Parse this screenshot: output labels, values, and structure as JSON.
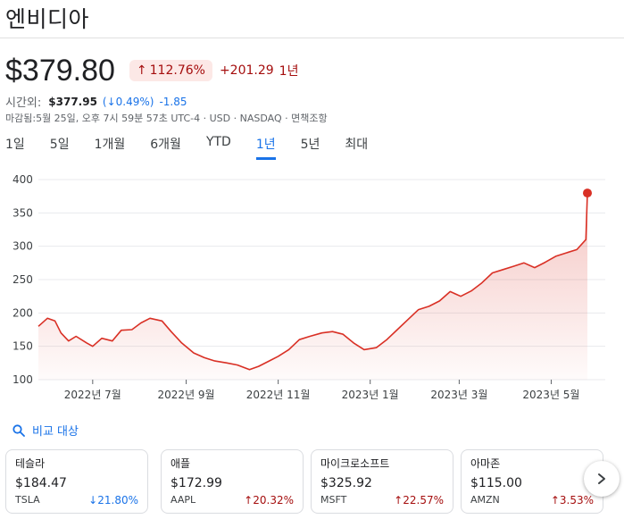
{
  "header": {
    "title": "엔비디아"
  },
  "quote": {
    "price": "$379.80",
    "change_pct": "112.76%",
    "change_abs": "+201.29",
    "period": "1년",
    "after_hours_label": "시간외:",
    "after_hours_price": "$377.95",
    "after_hours_pct": "(↓0.49%)",
    "after_hours_abs": "-1.85",
    "meta": "마감됨:5월 25일, 오후 7시 59분 57초 UTC-4 · USD · NASDAQ · 면책조항"
  },
  "ranges": [
    {
      "label": "1일",
      "active": false
    },
    {
      "label": "5일",
      "active": false
    },
    {
      "label": "1개월",
      "active": false
    },
    {
      "label": "6개월",
      "active": false
    },
    {
      "label": "YTD",
      "active": false
    },
    {
      "label": "1년",
      "active": true
    },
    {
      "label": "5년",
      "active": false
    },
    {
      "label": "최대",
      "active": false
    }
  ],
  "chart_data": {
    "type": "line",
    "y_ticks": [
      400,
      350,
      300,
      250,
      200,
      150,
      100
    ],
    "ylim": [
      100,
      400
    ],
    "x_tick_labels": [
      "2022년 7월",
      "2022년 9월",
      "2022년 11월",
      "2023년 1월",
      "2023년 3월",
      "2023년 5월"
    ],
    "x_tick_dates": [
      "2022-07-01",
      "2022-09-01",
      "2022-11-01",
      "2023-01-01",
      "2023-03-01",
      "2023-05-01"
    ],
    "xlim": [
      "2022-05-26",
      "2023-05-25"
    ],
    "line_color": "#d93025",
    "grid": true,
    "series": [
      {
        "dates": [
          "2022-05-26",
          "2022-06-01",
          "2022-06-06",
          "2022-06-10",
          "2022-06-15",
          "2022-06-20",
          "2022-06-27",
          "2022-07-01",
          "2022-07-07",
          "2022-07-14",
          "2022-07-20",
          "2022-07-27",
          "2022-08-02",
          "2022-08-08",
          "2022-08-16",
          "2022-08-22",
          "2022-08-29",
          "2022-09-06",
          "2022-09-13",
          "2022-09-20",
          "2022-09-28",
          "2022-10-05",
          "2022-10-13",
          "2022-10-19",
          "2022-10-26",
          "2022-11-01",
          "2022-11-08",
          "2022-11-15",
          "2022-11-22",
          "2022-11-30",
          "2022-12-07",
          "2022-12-14",
          "2022-12-21",
          "2022-12-28",
          "2023-01-05",
          "2023-01-12",
          "2023-01-19",
          "2023-01-26",
          "2023-02-02",
          "2023-02-09",
          "2023-02-16",
          "2023-02-23",
          "2023-03-02",
          "2023-03-09",
          "2023-03-16",
          "2023-03-23",
          "2023-03-30",
          "2023-04-06",
          "2023-04-13",
          "2023-04-20",
          "2023-04-27",
          "2023-05-04",
          "2023-05-11",
          "2023-05-18",
          "2023-05-24",
          "2023-05-25"
        ],
        "values": [
          180,
          192,
          188,
          170,
          158,
          165,
          155,
          150,
          162,
          158,
          174,
          175,
          185,
          192,
          188,
          172,
          155,
          140,
          133,
          128,
          125,
          122,
          115,
          120,
          128,
          135,
          145,
          160,
          165,
          170,
          172,
          168,
          155,
          145,
          148,
          160,
          175,
          190,
          205,
          210,
          218,
          232,
          225,
          233,
          245,
          260,
          265,
          270,
          275,
          268,
          276,
          285,
          290,
          295,
          310,
          379.8
        ]
      }
    ]
  },
  "compare_label": "비교 대상",
  "related": [
    {
      "name": "테슬라",
      "price": "$184.47",
      "ticker": "TSLA",
      "pct": "21.80%",
      "direction": "down"
    },
    {
      "name": "애플",
      "price": "$172.99",
      "ticker": "AAPL",
      "pct": "20.32%",
      "direction": "up"
    },
    {
      "name": "마이크로소프트",
      "price": "$325.92",
      "ticker": "MSFT",
      "pct": "22.57%",
      "direction": "up"
    },
    {
      "name": "아마존",
      "price": "$115.00",
      "ticker": "AMZN",
      "pct": "3.53%",
      "direction": "up"
    }
  ],
  "colors": {
    "up": "#a50e0e",
    "down": "#1a73e8",
    "accent": "#1a73e8",
    "line": "#d93025"
  }
}
